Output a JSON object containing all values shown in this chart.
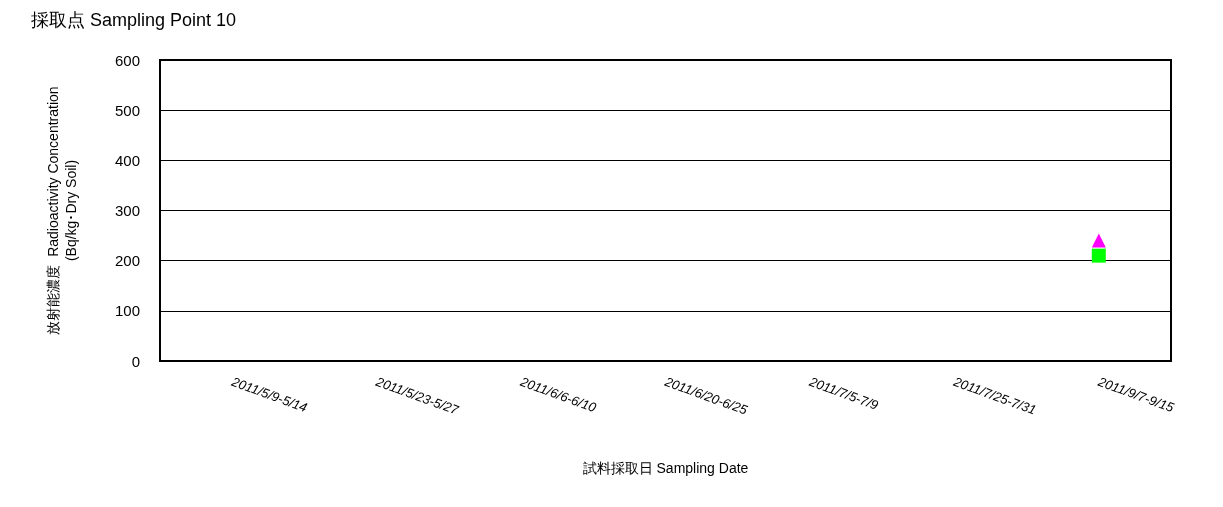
{
  "chart_data": {
    "type": "scatter",
    "title": "採取点 Sampling Point 10",
    "xlabel": "試料採取日 Sampling Date",
    "ylabel": "放射能濃度  Radioactivity Concentration\n(Bq/kg･Dry Soil)",
    "categories": [
      "2011/5/9-5/14",
      "2011/5/23-5/27",
      "2011/6/6-6/10",
      "2011/6/20-6/25",
      "2011/7/5-7/9",
      "2011/7/25-7/31",
      "2011/9/7-9/15"
    ],
    "series": [
      {
        "color": "#00ff00",
        "marker": "square",
        "values": [
          null,
          null,
          null,
          null,
          null,
          null,
          210
        ]
      },
      {
        "color": "#ff00ff",
        "marker": "triangle",
        "values": [
          null,
          null,
          null,
          null,
          null,
          null,
          240
        ]
      }
    ],
    "ylim": [
      0,
      600
    ],
    "yticks": [
      0,
      100,
      200,
      300,
      400,
      500,
      600
    ],
    "grid": "y"
  }
}
